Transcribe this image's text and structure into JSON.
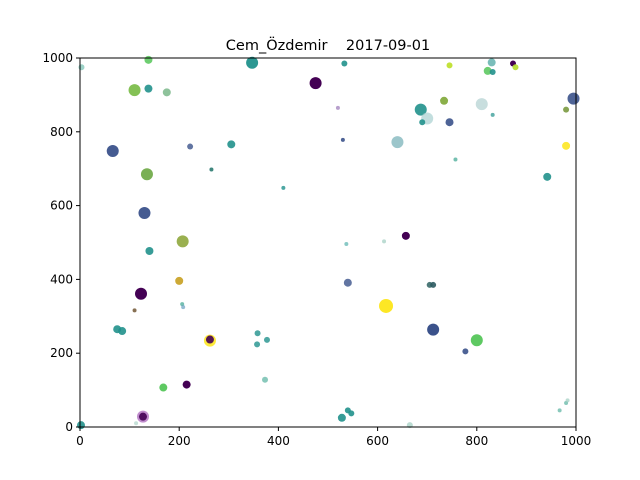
{
  "chart_data": {
    "type": "scatter",
    "title": "Cem_Özdemir    2017-09-01",
    "xlabel": "",
    "ylabel": "",
    "xlim": [
      0,
      1000
    ],
    "ylim": [
      0,
      1000
    ],
    "xticks": [
      0,
      200,
      400,
      600,
      800,
      1000
    ],
    "yticks": [
      0,
      200,
      400,
      600,
      800,
      1000
    ],
    "grid": false,
    "legend": "none",
    "points": [
      {
        "x": 3,
        "y": 975,
        "color": "#3aa590",
        "alpha": 0.5,
        "r": 3
      },
      {
        "x": 138,
        "y": 995,
        "color": "#5ec962",
        "alpha": 0.9,
        "r": 4
      },
      {
        "x": 347,
        "y": 987,
        "color": "#21918c",
        "alpha": 0.95,
        "r": 6
      },
      {
        "x": 533,
        "y": 985,
        "color": "#21918c",
        "alpha": 0.9,
        "r": 3
      },
      {
        "x": 475,
        "y": 932,
        "color": "#440154",
        "alpha": 1,
        "r": 6
      },
      {
        "x": 745,
        "y": 980,
        "color": "#bddf26",
        "alpha": 0.9,
        "r": 3
      },
      {
        "x": 873,
        "y": 985,
        "color": "#440154",
        "alpha": 1,
        "r": 3
      },
      {
        "x": 878,
        "y": 975,
        "color": "#b5de2b",
        "alpha": 0.9,
        "r": 3
      },
      {
        "x": 830,
        "y": 988,
        "color": "#21918c",
        "alpha": 0.6,
        "r": 4
      },
      {
        "x": 822,
        "y": 965,
        "color": "#5ec962",
        "alpha": 0.9,
        "r": 4
      },
      {
        "x": 832,
        "y": 962,
        "color": "#21918c",
        "alpha": 0.9,
        "r": 3
      },
      {
        "x": 110,
        "y": 913,
        "color": "#84c155",
        "alpha": 1,
        "r": 6
      },
      {
        "x": 138,
        "y": 917,
        "color": "#21918c",
        "alpha": 0.9,
        "r": 4
      },
      {
        "x": 175,
        "y": 907,
        "color": "#5ea870",
        "alpha": 0.7,
        "r": 4
      },
      {
        "x": 687,
        "y": 860,
        "color": "#21918c",
        "alpha": 0.9,
        "r": 6
      },
      {
        "x": 700,
        "y": 836,
        "color": "#a8d0d0",
        "alpha": 0.7,
        "r": 6
      },
      {
        "x": 690,
        "y": 826,
        "color": "#21918c",
        "alpha": 0.9,
        "r": 3
      },
      {
        "x": 734,
        "y": 884,
        "color": "#8bb04a",
        "alpha": 1,
        "r": 4
      },
      {
        "x": 745,
        "y": 826,
        "color": "#3b528b",
        "alpha": 0.9,
        "r": 4
      },
      {
        "x": 810,
        "y": 875,
        "color": "#a3c8c8",
        "alpha": 0.6,
        "r": 6
      },
      {
        "x": 832,
        "y": 846,
        "color": "#21918c",
        "alpha": 0.7,
        "r": 2
      },
      {
        "x": 520,
        "y": 865,
        "color": "#9a78b8",
        "alpha": 0.7,
        "r": 2
      },
      {
        "x": 980,
        "y": 860,
        "color": "#7a9a40",
        "alpha": 0.9,
        "r": 3
      },
      {
        "x": 995,
        "y": 890,
        "color": "#3b528b",
        "alpha": 0.9,
        "r": 6
      },
      {
        "x": 530,
        "y": 778,
        "color": "#3b528b",
        "alpha": 0.9,
        "r": 2
      },
      {
        "x": 66,
        "y": 748,
        "color": "#3b528b",
        "alpha": 0.95,
        "r": 6
      },
      {
        "x": 222,
        "y": 760,
        "color": "#3b528b",
        "alpha": 0.8,
        "r": 3
      },
      {
        "x": 305,
        "y": 766,
        "color": "#21918c",
        "alpha": 0.9,
        "r": 4
      },
      {
        "x": 640,
        "y": 772,
        "color": "#5aa0a8",
        "alpha": 0.6,
        "r": 6
      },
      {
        "x": 757,
        "y": 725,
        "color": "#3aa590",
        "alpha": 0.7,
        "r": 2
      },
      {
        "x": 980,
        "y": 762,
        "color": "#fde725",
        "alpha": 0.9,
        "r": 4
      },
      {
        "x": 135,
        "y": 685,
        "color": "#7ab055",
        "alpha": 1,
        "r": 6
      },
      {
        "x": 265,
        "y": 698,
        "color": "#2a7a70",
        "alpha": 0.9,
        "r": 2
      },
      {
        "x": 410,
        "y": 648,
        "color": "#21918c",
        "alpha": 0.8,
        "r": 2
      },
      {
        "x": 942,
        "y": 678,
        "color": "#21918c",
        "alpha": 0.9,
        "r": 4
      },
      {
        "x": 130,
        "y": 580,
        "color": "#3b528b",
        "alpha": 0.95,
        "r": 6
      },
      {
        "x": 207,
        "y": 503,
        "color": "#9ab050",
        "alpha": 1,
        "r": 6
      },
      {
        "x": 140,
        "y": 477,
        "color": "#21918c",
        "alpha": 0.9,
        "r": 4
      },
      {
        "x": 537,
        "y": 496,
        "color": "#3aa5a0",
        "alpha": 0.6,
        "r": 2
      },
      {
        "x": 613,
        "y": 503,
        "color": "#a0cdc0",
        "alpha": 0.7,
        "r": 2
      },
      {
        "x": 657,
        "y": 518,
        "color": "#440154",
        "alpha": 1,
        "r": 4
      },
      {
        "x": 200,
        "y": 396,
        "color": "#c8a020",
        "alpha": 0.9,
        "r": 4
      },
      {
        "x": 540,
        "y": 391,
        "color": "#3b528b",
        "alpha": 0.8,
        "r": 4
      },
      {
        "x": 705,
        "y": 385,
        "color": "#3a6a6a",
        "alpha": 0.9,
        "r": 3
      },
      {
        "x": 712,
        "y": 385,
        "color": "#2c5a60",
        "alpha": 0.9,
        "r": 3
      },
      {
        "x": 123,
        "y": 361,
        "color": "#440154",
        "alpha": 1,
        "r": 6
      },
      {
        "x": 617,
        "y": 328,
        "color": "#fde725",
        "alpha": 1,
        "r": 7
      },
      {
        "x": 110,
        "y": 316,
        "color": "#7a6040",
        "alpha": 0.9,
        "r": 2
      },
      {
        "x": 206,
        "y": 333,
        "color": "#3aa590",
        "alpha": 0.7,
        "r": 2
      },
      {
        "x": 208,
        "y": 325,
        "color": "#6aa0c0",
        "alpha": 0.7,
        "r": 2
      },
      {
        "x": 75,
        "y": 265,
        "color": "#21918c",
        "alpha": 0.9,
        "r": 4
      },
      {
        "x": 85,
        "y": 260,
        "color": "#21918c",
        "alpha": 0.9,
        "r": 4
      },
      {
        "x": 358,
        "y": 254,
        "color": "#21918c",
        "alpha": 0.8,
        "r": 3
      },
      {
        "x": 712,
        "y": 264,
        "color": "#3b528b",
        "alpha": 1,
        "r": 6
      },
      {
        "x": 262,
        "y": 234,
        "color": "#fde725",
        "alpha": 0.9,
        "r": 6
      },
      {
        "x": 262,
        "y": 237,
        "color": "#440154",
        "alpha": 0.9,
        "r": 4
      },
      {
        "x": 357,
        "y": 224,
        "color": "#21918c",
        "alpha": 0.8,
        "r": 3
      },
      {
        "x": 377,
        "y": 236,
        "color": "#21918c",
        "alpha": 0.8,
        "r": 3
      },
      {
        "x": 800,
        "y": 235,
        "color": "#5ec962",
        "alpha": 1,
        "r": 6
      },
      {
        "x": 777,
        "y": 205,
        "color": "#3b528b",
        "alpha": 0.9,
        "r": 3
      },
      {
        "x": 373,
        "y": 128,
        "color": "#3aa590",
        "alpha": 0.6,
        "r": 3
      },
      {
        "x": 168,
        "y": 107,
        "color": "#5ec962",
        "alpha": 1,
        "r": 4
      },
      {
        "x": 215,
        "y": 115,
        "color": "#440154",
        "alpha": 1,
        "r": 4
      },
      {
        "x": 540,
        "y": 45,
        "color": "#21918c",
        "alpha": 0.9,
        "r": 3
      },
      {
        "x": 547,
        "y": 37,
        "color": "#21918c",
        "alpha": 0.9,
        "r": 3
      },
      {
        "x": 528,
        "y": 25,
        "color": "#21918c",
        "alpha": 0.9,
        "r": 4
      },
      {
        "x": 980,
        "y": 65,
        "color": "#3aa590",
        "alpha": 0.6,
        "r": 2
      },
      {
        "x": 983,
        "y": 72,
        "color": "#a0cdc0",
        "alpha": 0.7,
        "r": 2
      },
      {
        "x": 967,
        "y": 45,
        "color": "#3aa590",
        "alpha": 0.6,
        "r": 2
      },
      {
        "x": 127,
        "y": 28,
        "color": "#b070c0",
        "alpha": 0.8,
        "r": 6
      },
      {
        "x": 127,
        "y": 28,
        "color": "#440154",
        "alpha": 0.9,
        "r": 4
      },
      {
        "x": 113,
        "y": 10,
        "color": "#a0cdc0",
        "alpha": 0.6,
        "r": 2
      },
      {
        "x": 665,
        "y": 5,
        "color": "#a0cdc0",
        "alpha": 0.7,
        "r": 3
      },
      {
        "x": 2,
        "y": 5,
        "color": "#21918c",
        "alpha": 0.9,
        "r": 4
      }
    ]
  }
}
